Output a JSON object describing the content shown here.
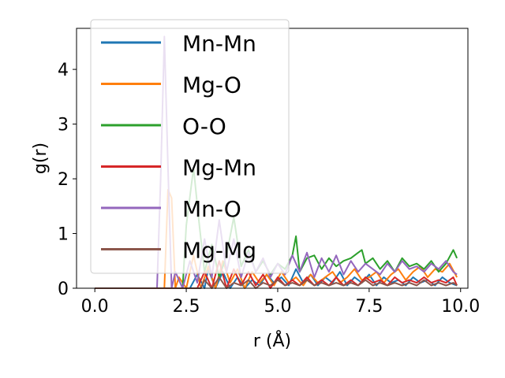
{
  "chart_data": {
    "type": "line",
    "xlabel": "r (Å)",
    "ylabel": "g(r)",
    "xlim": [
      -0.5,
      10.2
    ],
    "ylim": [
      0,
      4.75
    ],
    "xticks": [
      "0.0",
      "2.5",
      "5.0",
      "7.5",
      "10.0"
    ],
    "xtick_values": [
      0,
      2.5,
      5,
      7.5,
      10
    ],
    "yticks": [
      "0",
      "1",
      "2",
      "3",
      "4"
    ],
    "ytick_values": [
      0,
      1,
      2,
      3,
      4
    ],
    "grid": false,
    "legend_position": "upper-left",
    "series": [
      {
        "name": "Mn-Mn",
        "color": "#1f77b4",
        "x": [
          0.0,
          1.6,
          2.6,
          2.8,
          3.0,
          3.1,
          3.3,
          3.5,
          3.7,
          3.9,
          4.1,
          4.3,
          4.5,
          4.7,
          4.9,
          5.1,
          5.3,
          5.5,
          5.7,
          5.9,
          6.1,
          6.3,
          6.5,
          6.7,
          6.9,
          7.1,
          7.3,
          7.5,
          7.7,
          7.9,
          8.1,
          8.3,
          8.5,
          8.7,
          8.9,
          9.1,
          9.3,
          9.5,
          9.7,
          9.9
        ],
        "y": [
          0,
          0,
          0,
          0.25,
          0,
          0.35,
          0,
          0.3,
          0,
          0.2,
          0,
          0.15,
          0.05,
          0.25,
          0.1,
          0.2,
          0.05,
          0.35,
          0.1,
          0.25,
          0.05,
          0.2,
          0.1,
          0.3,
          0.05,
          0.2,
          0.1,
          0.25,
          0.05,
          0.2,
          0.1,
          0.15,
          0.05,
          0.2,
          0.1,
          0.15,
          0.05,
          0.2,
          0.1,
          0.05
        ]
      },
      {
        "name": "Mg-O",
        "color": "#ff7f0e",
        "x": [
          0.0,
          1.85,
          1.9,
          2.0,
          2.1,
          2.2,
          2.3,
          2.5,
          2.7,
          2.9,
          3.1,
          3.3,
          3.5,
          3.7,
          3.9,
          4.1,
          4.3,
          4.5,
          4.7,
          4.9,
          5.1,
          5.3,
          5.5,
          5.7,
          5.9,
          6.1,
          6.3,
          6.5,
          6.7,
          6.9,
          7.1,
          7.3,
          7.5,
          7.7,
          7.9,
          8.1,
          8.3,
          8.5,
          8.7,
          8.9,
          9.1,
          9.3,
          9.5,
          9.7,
          9.9
        ],
        "y": [
          0,
          0,
          0,
          1.8,
          1.65,
          0,
          0.2,
          0,
          0.6,
          0,
          0.4,
          0,
          0.5,
          0.1,
          0.35,
          0,
          0.3,
          0.1,
          0.25,
          0.05,
          0.3,
          0.1,
          0.2,
          0.05,
          0.25,
          0.1,
          0.2,
          0.3,
          0.1,
          0.2,
          0.35,
          0.15,
          0.2,
          0.3,
          0.1,
          0.25,
          0.35,
          0.15,
          0.3,
          0.4,
          0.2,
          0.35,
          0.3,
          0.45,
          0.2
        ]
      },
      {
        "name": "O-O",
        "color": "#2ca02c",
        "x": [
          0.0,
          2.4,
          2.5,
          2.7,
          2.85,
          3.0,
          3.2,
          3.4,
          3.6,
          3.8,
          4.0,
          4.2,
          4.4,
          4.6,
          4.8,
          5.0,
          5.2,
          5.4,
          5.5,
          5.6,
          5.8,
          6.0,
          6.2,
          6.4,
          6.6,
          6.8,
          7.0,
          7.2,
          7.3,
          7.4,
          7.6,
          7.8,
          8.0,
          8.2,
          8.4,
          8.6,
          8.8,
          9.0,
          9.2,
          9.4,
          9.6,
          9.8,
          9.9
        ],
        "y": [
          0,
          0,
          1.15,
          2.2,
          1.2,
          0.3,
          0.8,
          0.2,
          0.6,
          1.3,
          0.4,
          0.7,
          0.3,
          0.5,
          0.25,
          0.45,
          0.35,
          0.6,
          0.95,
          0.3,
          0.55,
          0.6,
          0.35,
          0.55,
          0.4,
          0.5,
          0.55,
          0.65,
          0.7,
          0.45,
          0.55,
          0.35,
          0.5,
          0.3,
          0.55,
          0.4,
          0.45,
          0.35,
          0.5,
          0.3,
          0.45,
          0.7,
          0.55
        ]
      },
      {
        "name": "Mg-Mn",
        "color": "#d62728",
        "x": [
          0.0,
          2.8,
          3.0,
          3.2,
          3.4,
          3.6,
          3.8,
          4.0,
          4.2,
          4.4,
          4.6,
          4.8,
          5.0,
          5.2,
          5.4,
          5.6,
          5.8,
          6.0,
          6.2,
          6.4,
          6.6,
          6.8,
          7.0,
          7.2,
          7.4,
          7.6,
          7.8,
          8.0,
          8.2,
          8.4,
          8.6,
          8.8,
          9.0,
          9.2,
          9.4,
          9.6,
          9.8,
          9.9
        ],
        "y": [
          0,
          0,
          0.3,
          0,
          0.5,
          0,
          0.35,
          0.05,
          0.3,
          0.05,
          0.25,
          0,
          0.2,
          0.05,
          0.15,
          0.05,
          0.2,
          0.05,
          0.15,
          0.05,
          0.2,
          0.05,
          0.15,
          0.05,
          0.2,
          0.1,
          0.15,
          0.05,
          0.2,
          0.1,
          0.15,
          0.1,
          0.2,
          0.1,
          0.15,
          0.1,
          0.2,
          0.05
        ]
      },
      {
        "name": "Mn-O",
        "color": "#9467bd",
        "x": [
          0.0,
          1.7,
          1.8,
          1.9,
          2.0,
          2.1,
          2.2,
          2.4,
          2.6,
          2.8,
          3.0,
          3.2,
          3.4,
          3.6,
          3.8,
          4.0,
          4.2,
          4.4,
          4.6,
          4.8,
          5.0,
          5.2,
          5.4,
          5.6,
          5.8,
          6.0,
          6.2,
          6.4,
          6.6,
          6.8,
          7.0,
          7.2,
          7.4,
          7.6,
          7.8,
          8.0,
          8.2,
          8.4,
          8.6,
          8.8,
          9.0,
          9.2,
          9.4,
          9.6,
          9.8,
          9.9
        ],
        "y": [
          0,
          0,
          2.0,
          4.6,
          2.2,
          0,
          0.3,
          0,
          0.5,
          0.1,
          0.9,
          0.2,
          1.25,
          0.3,
          0.9,
          0.2,
          0.65,
          0.3,
          0.55,
          0.2,
          0.45,
          0.25,
          0.6,
          0.3,
          0.65,
          0.2,
          0.55,
          0.3,
          0.6,
          0.25,
          0.5,
          0.3,
          0.45,
          0.35,
          0.25,
          0.45,
          0.3,
          0.5,
          0.35,
          0.4,
          0.3,
          0.45,
          0.35,
          0.5,
          0.3,
          0.25
        ]
      },
      {
        "name": "Mg-Mg",
        "color": "#8c564b",
        "x": [
          0.0,
          2.9,
          3.0,
          3.2,
          3.4,
          3.6,
          3.8,
          4.0,
          4.2,
          4.4,
          4.6,
          4.8,
          5.0,
          5.2,
          5.4,
          5.6,
          5.8,
          6.0,
          6.2,
          6.4,
          6.6,
          6.8,
          7.0,
          7.2,
          7.4,
          7.6,
          7.8,
          8.0,
          8.2,
          8.4,
          8.6,
          8.8,
          9.0,
          9.2,
          9.4,
          9.6,
          9.8,
          9.9
        ],
        "y": [
          0,
          0,
          0.15,
          0,
          0.2,
          0,
          0.1,
          0.05,
          0.15,
          0,
          0.1,
          0.05,
          0.15,
          0.05,
          0.1,
          0.05,
          0.15,
          0.05,
          0.1,
          0.05,
          0.1,
          0.05,
          0.1,
          0.05,
          0.15,
          0.05,
          0.1,
          0.05,
          0.1,
          0.05,
          0.1,
          0.05,
          0.15,
          0.05,
          0.1,
          0.05,
          0.1,
          0.05
        ]
      }
    ]
  }
}
